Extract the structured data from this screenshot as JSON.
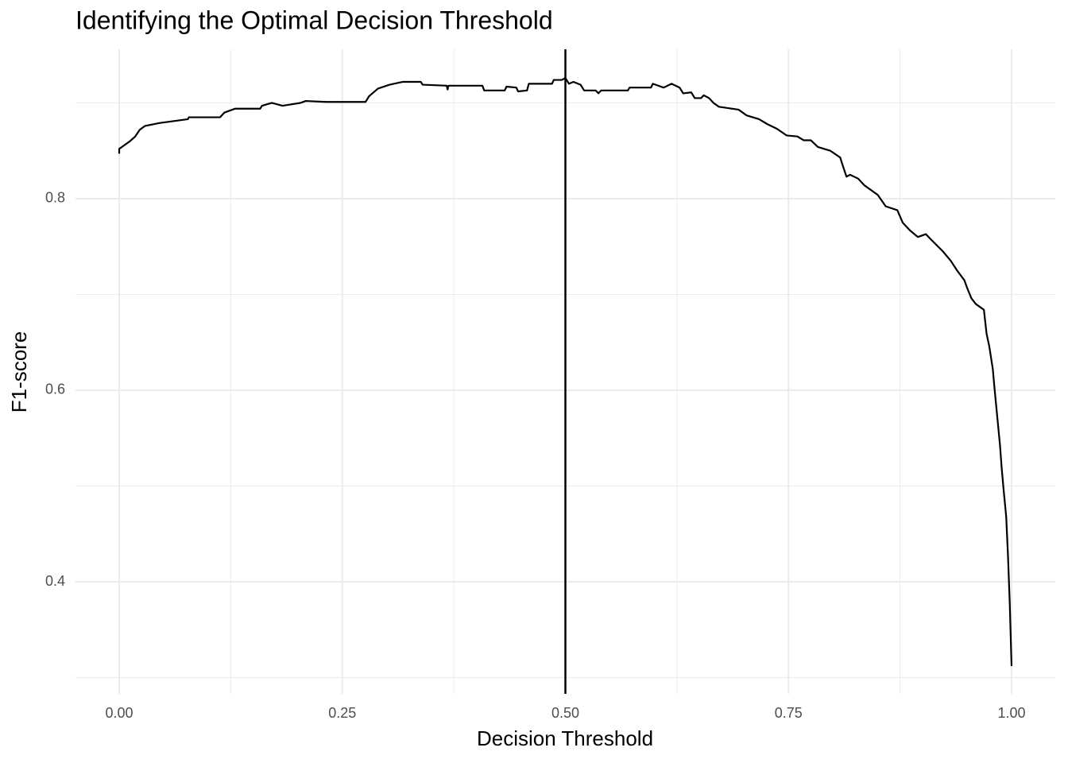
{
  "chart_data": {
    "type": "line",
    "title": "Identifying the Optimal Decision Threshold",
    "x_label": "Decision Threshold",
    "y_label": "F1-score",
    "color": "#000000",
    "vline": 0.5,
    "vline_color": "#000000",
    "grid": true,
    "xlim": [
      -0.049,
      1.049
    ],
    "ylim": [
      0.283,
      0.956
    ],
    "xticks": [
      {
        "value": 0,
        "label": "0.00"
      },
      {
        "value": 0.25,
        "label": "0.25"
      },
      {
        "value": 0.5,
        "label": "0.50"
      },
      {
        "value": 0.75,
        "label": "0.75"
      },
      {
        "value": 1,
        "label": "1.00"
      }
    ],
    "yticks": [
      0.4,
      0.6,
      0.8
    ],
    "x_minor_ticks": [
      0.125,
      0.375,
      0.625,
      0.875
    ],
    "y_minor_ticks": [
      0.3,
      0.5,
      0.7,
      0.9
    ],
    "x": [
      0,
      0,
      0.006,
      0.012,
      0.018,
      0.023,
      0.029,
      0.045,
      0.077,
      0.078,
      0.113,
      0.118,
      0.13,
      0.158,
      0.16,
      0.171,
      0.183,
      0.203,
      0.209,
      0.232,
      0.276,
      0.28,
      0.29,
      0.303,
      0.318,
      0.338,
      0.34,
      0.367,
      0.368,
      0.369,
      0.407,
      0.409,
      0.432,
      0.434,
      0.445,
      0.447,
      0.457,
      0.459,
      0.485,
      0.487,
      0.496,
      0.5,
      0.504,
      0.509,
      0.517,
      0.521,
      0.534,
      0.537,
      0.54,
      0.57,
      0.572,
      0.596,
      0.598,
      0.61,
      0.619,
      0.628,
      0.632,
      0.641,
      0.645,
      0.652,
      0.655,
      0.661,
      0.666,
      0.672,
      0.694,
      0.703,
      0.717,
      0.726,
      0.737,
      0.748,
      0.76,
      0.767,
      0.775,
      0.783,
      0.797,
      0.808,
      0.81,
      0.815,
      0.819,
      0.828,
      0.835,
      0.85,
      0.859,
      0.872,
      0.878,
      0.886,
      0.895,
      0.904,
      0.908,
      0.923,
      0.932,
      0.939,
      0.947,
      0.951,
      0.955,
      0.96,
      0.969,
      0.972,
      0.975,
      0.979,
      0.981,
      0.984,
      0.987,
      0.989,
      0.991,
      0.994,
      0.996,
      0.998,
      1
    ],
    "values": [
      0.847,
      0.852,
      0.856,
      0.86,
      0.865,
      0.872,
      0.876,
      0.879,
      0.883,
      0.885,
      0.885,
      0.89,
      0.894,
      0.894,
      0.897,
      0.9,
      0.897,
      0.9,
      0.902,
      0.901,
      0.901,
      0.907,
      0.915,
      0.919,
      0.922,
      0.922,
      0.919,
      0.918,
      0.914,
      0.918,
      0.918,
      0.913,
      0.913,
      0.917,
      0.916,
      0.912,
      0.913,
      0.92,
      0.92,
      0.924,
      0.924,
      0.926,
      0.92,
      0.922,
      0.919,
      0.913,
      0.913,
      0.91,
      0.913,
      0.913,
      0.916,
      0.916,
      0.92,
      0.916,
      0.92,
      0.916,
      0.91,
      0.911,
      0.905,
      0.905,
      0.908,
      0.905,
      0.9,
      0.896,
      0.893,
      0.887,
      0.883,
      0.878,
      0.873,
      0.866,
      0.865,
      0.861,
      0.861,
      0.854,
      0.85,
      0.843,
      0.837,
      0.823,
      0.825,
      0.821,
      0.814,
      0.804,
      0.792,
      0.788,
      0.775,
      0.767,
      0.76,
      0.763,
      0.759,
      0.745,
      0.735,
      0.725,
      0.715,
      0.705,
      0.696,
      0.69,
      0.684,
      0.659,
      0.646,
      0.622,
      0.601,
      0.572,
      0.543,
      0.518,
      0.497,
      0.468,
      0.427,
      0.377,
      0.312
    ]
  }
}
